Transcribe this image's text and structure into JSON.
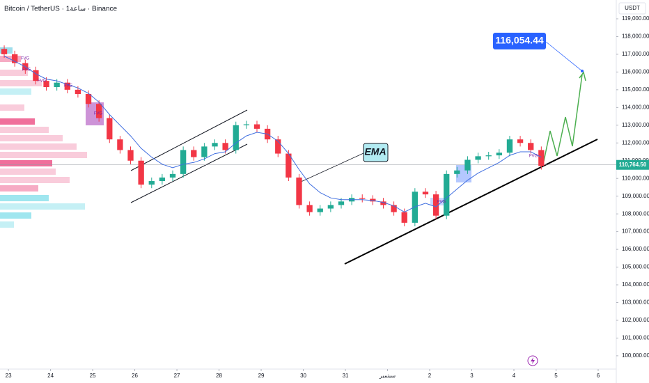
{
  "chart_data": {
    "type": "candlestick",
    "title": "Bitcoin / TetherUS · 1ساعة · Binance",
    "currency": "USDT",
    "x": [
      22.9,
      23.15,
      23.4,
      23.65,
      23.9,
      24.15,
      24.4,
      24.65,
      24.9,
      25.15,
      25.4,
      25.65,
      25.9,
      26.15,
      26.4,
      26.65,
      26.9,
      27.15,
      27.4,
      27.65,
      27.9,
      28.15,
      28.4,
      28.65,
      28.9,
      29.15,
      29.4,
      29.65,
      29.9,
      30.15,
      30.4,
      30.65,
      30.9,
      31.15,
      31.4,
      31.65,
      31.9,
      32.15,
      32.4,
      32.65,
      32.9,
      33.15,
      33.4,
      33.65,
      33.9,
      34.15,
      34.4,
      34.65,
      34.9,
      35.15,
      35.4,
      35.65
    ],
    "open": [
      117300,
      117000,
      116500,
      116100,
      115500,
      115150,
      115400,
      115000,
      114760,
      114200,
      113400,
      112200,
      111600,
      111000,
      109650,
      109850,
      110050,
      110250,
      111600,
      111200,
      111800,
      112000,
      111600,
      113000,
      113050,
      112800,
      112200,
      111400,
      110050,
      108500,
      108100,
      108300,
      108500,
      108700,
      108900,
      108850,
      108700,
      108500,
      108100,
      107500,
      109250,
      109100,
      107900,
      110250,
      110450,
      111050,
      111250,
      111300,
      111450,
      112200,
      112000,
      111600
    ],
    "high": [
      117500,
      117200,
      116700,
      116300,
      115700,
      115600,
      115600,
      115200,
      114960,
      114400,
      113600,
      112400,
      111800,
      111200,
      110050,
      110250,
      110450,
      111800,
      111800,
      112000,
      112200,
      112200,
      113200,
      113250,
      113250,
      113000,
      112400,
      111600,
      110250,
      108700,
      108500,
      108700,
      108900,
      109100,
      109100,
      109050,
      108900,
      108700,
      108300,
      109450,
      109450,
      109300,
      110450,
      110650,
      111250,
      111450,
      111500,
      111650,
      112400,
      112400,
      112200,
      111800
    ],
    "low": [
      116800,
      116300,
      115900,
      115300,
      114950,
      114950,
      114800,
      114560,
      114000,
      113200,
      112000,
      111400,
      110800,
      109450,
      109450,
      109650,
      109850,
      110050,
      111000,
      111000,
      111600,
      111400,
      111400,
      112800,
      112600,
      112000,
      111200,
      109850,
      108300,
      107900,
      107900,
      108100,
      108300,
      108500,
      108650,
      108500,
      108300,
      107900,
      107300,
      107300,
      108900,
      107700,
      107700,
      110050,
      110250,
      110850,
      111050,
      111100,
      111250,
      111800,
      111400,
      110500
    ],
    "close": [
      117000,
      116500,
      116100,
      115500,
      115150,
      115400,
      115000,
      114760,
      114200,
      113400,
      112200,
      111600,
      111000,
      109650,
      109850,
      110050,
      110250,
      111600,
      111200,
      111800,
      112000,
      111600,
      113000,
      113050,
      112800,
      112200,
      111400,
      110050,
      108500,
      108100,
      108300,
      108500,
      108700,
      108900,
      108850,
      108700,
      108500,
      108100,
      107500,
      109250,
      109100,
      107900,
      110250,
      110450,
      111050,
      111250,
      111300,
      111450,
      112200,
      112000,
      111600,
      110700
    ],
    "up_color": "#22ab94",
    "down_color": "#f23645",
    "ema": {
      "name": "EMA",
      "color": "#3f6ee0",
      "values": [
        116900,
        116600,
        116300,
        115900,
        115600,
        115500,
        115300,
        115100,
        114800,
        114300,
        113600,
        113000,
        112400,
        111700,
        111200,
        110800,
        110600,
        110800,
        110900,
        111100,
        111400,
        111500,
        112000,
        112400,
        112600,
        112500,
        112100,
        111400,
        110500,
        109700,
        109200,
        108900,
        108800,
        108800,
        108800,
        108750,
        108650,
        108450,
        108100,
        108400,
        108600,
        108400,
        108900,
        109400,
        109900,
        110300,
        110600,
        110900,
        111300,
        111500,
        111500,
        111200
      ]
    },
    "current_price": {
      "value": 110764.5,
      "label": "110,764.50",
      "color": "#22ab94"
    },
    "target": {
      "value": 116054.44,
      "label": "116,054.44",
      "color": "#2962ff"
    },
    "fvg_labels": [
      "FVG",
      "FVG",
      "FVG",
      "FVG",
      "FVG",
      "FVG",
      "FVG"
    ],
    "xlim": [
      22.8,
      37.43
    ],
    "xticks": [
      23,
      24,
      25,
      26,
      27,
      28,
      29,
      30,
      31,
      {
        "value": 32,
        "label": "سبتمبر"
      },
      {
        "value": 33,
        "label": "2"
      },
      {
        "value": 34,
        "label": "3"
      },
      {
        "value": 35,
        "label": "4"
      },
      {
        "value": 36,
        "label": "5"
      },
      {
        "value": 37,
        "label": "6"
      }
    ],
    "ylim": [
      99250,
      120060
    ],
    "yticks": [
      {
        "value": 100000,
        "label": "100,000.00"
      },
      {
        "value": 101000,
        "label": "101,000.00"
      },
      {
        "value": 102000,
        "label": "102,000.00"
      },
      {
        "value": 103000,
        "label": "103,000.00"
      },
      {
        "value": 104000,
        "label": "104,000.00"
      },
      {
        "value": 105000,
        "label": "105,000.00"
      },
      {
        "value": 106000,
        "label": "106,000.00"
      },
      {
        "value": 107000,
        "label": "107,000.00"
      },
      {
        "value": 108000,
        "label": "108,000.00"
      },
      {
        "value": 109000,
        "label": "109,000.00"
      },
      {
        "value": 110000,
        "label": "110,000.00"
      },
      {
        "value": 111000,
        "label": "111,000.00"
      },
      {
        "value": 112000,
        "label": "112,000.00"
      },
      {
        "value": 113000,
        "label": "113,000.00"
      },
      {
        "value": 114000,
        "label": "114,000.00"
      },
      {
        "value": 115000,
        "label": "115,000.00"
      },
      {
        "value": 116000,
        "label": "116,000.00"
      },
      {
        "value": 117000,
        "label": "117,000.00"
      },
      {
        "value": 118000,
        "label": "118,000.00"
      },
      {
        "value": 119000,
        "label": "119,000.00"
      }
    ],
    "grid": false
  }
}
